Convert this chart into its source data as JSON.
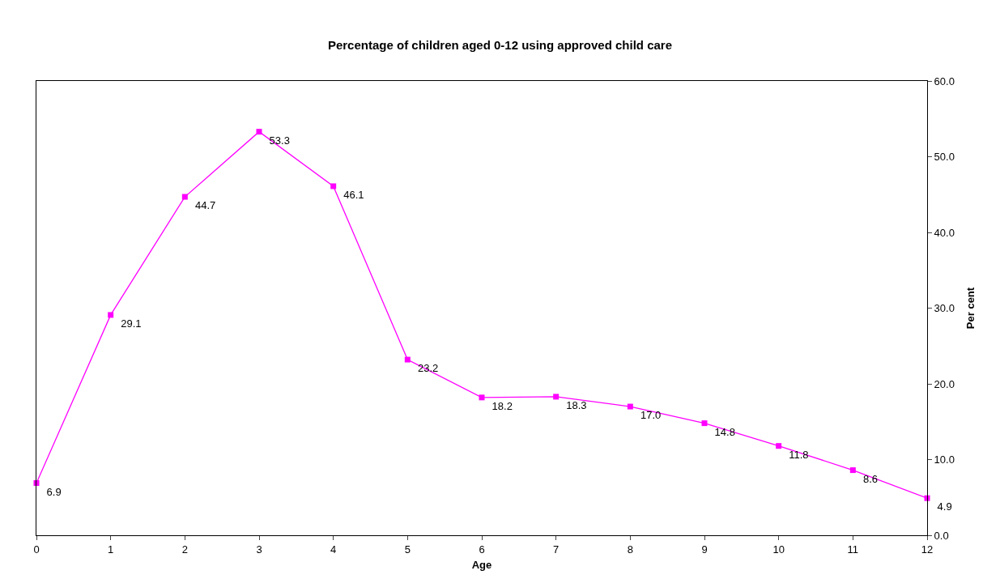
{
  "chart_data": {
    "type": "line",
    "title": "Percentage of children aged 0-12 using approved child care",
    "xlabel": "Age",
    "ylabel": "Per cent",
    "x": [
      0,
      1,
      2,
      3,
      4,
      5,
      6,
      7,
      8,
      9,
      10,
      11,
      12
    ],
    "series": [
      {
        "color": "#ff00ff",
        "values": [
          6.9,
          29.1,
          44.7,
          53.3,
          46.1,
          23.2,
          18.2,
          18.3,
          17.0,
          14.8,
          11.8,
          8.6,
          4.9
        ],
        "value_labels": [
          "6.9",
          "29.1",
          "44.7",
          "53.3",
          "46.1",
          "23.2",
          "18.2",
          "18.3",
          "17.0",
          "14.8",
          "11.8",
          "8.6",
          "4.9"
        ]
      }
    ],
    "xlim": [
      0,
      12
    ],
    "xticks": [
      0,
      1,
      2,
      3,
      4,
      5,
      6,
      7,
      8,
      9,
      10,
      11,
      12
    ],
    "ylim": [
      0,
      60
    ],
    "yticks": [
      {
        "value": 0,
        "label": "0.0"
      },
      {
        "value": 10,
        "label": "10.0"
      },
      {
        "value": 20,
        "label": "20.0"
      },
      {
        "value": 30,
        "label": "30.0"
      },
      {
        "value": 40,
        "label": "40.0"
      },
      {
        "value": 50,
        "label": "50.0"
      },
      {
        "value": 60,
        "label": "60.0"
      }
    ],
    "marker": "square",
    "line_style": "solid"
  }
}
